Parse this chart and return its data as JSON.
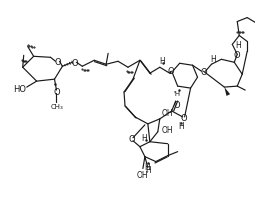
{
  "bg_color": "#ffffff",
  "line_color": "#1a1a1a",
  "lw": 0.85,
  "fig_width": 2.56,
  "fig_height": 2.05,
  "dpi": 100,
  "xlim": [
    0,
    256
  ],
  "ylim": [
    0,
    205
  ]
}
